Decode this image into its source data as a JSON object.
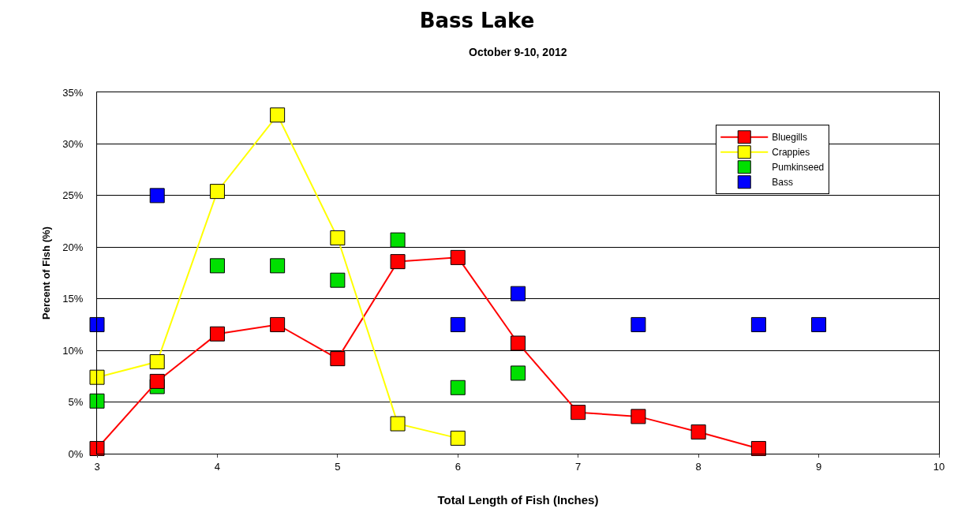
{
  "chart_data": {
    "type": "line",
    "title": "Bass Lake",
    "subtitle": "October 9-10, 2012",
    "xlabel": "Total Length of Fish (Inches)",
    "ylabel": "Percent of Fish (%)",
    "x": [
      3,
      3.5,
      4,
      4.5,
      5,
      5.5,
      6,
      6.5,
      7,
      7.5,
      8,
      8.5,
      9
    ],
    "series": [
      {
        "name": "Bluegills",
        "type": "line",
        "color": "#ff0000",
        "values": [
          0.5,
          7.0,
          11.6,
          12.5,
          9.2,
          18.6,
          19.0,
          10.7,
          4.0,
          3.6,
          2.1,
          0.5,
          null
        ]
      },
      {
        "name": "Crappies",
        "type": "line",
        "color": "#ffff00",
        "values": [
          7.4,
          8.9,
          25.4,
          32.8,
          20.9,
          2.9,
          1.5,
          null,
          null,
          null,
          null,
          null,
          null
        ]
      },
      {
        "name": "Pumkinseed",
        "type": "scatter",
        "color": "#00e000",
        "values": [
          5.1,
          6.5,
          18.2,
          18.2,
          16.8,
          20.7,
          6.4,
          7.8,
          null,
          null,
          null,
          null,
          null
        ]
      },
      {
        "name": "Bass",
        "type": "scatter",
        "color": "#0000ff",
        "values": [
          12.5,
          25.0,
          null,
          null,
          null,
          null,
          12.5,
          15.5,
          null,
          12.5,
          null,
          12.5,
          12.5
        ]
      }
    ],
    "xlim": [
      3,
      10
    ],
    "xticks": [
      3,
      4,
      5,
      6,
      7,
      8,
      9,
      10
    ],
    "ylim": [
      0,
      35
    ],
    "yticks": [
      {
        "value": 0,
        "label": "0%"
      },
      {
        "value": 5,
        "label": "5%"
      },
      {
        "value": 10,
        "label": "10%"
      },
      {
        "value": 15,
        "label": "15%"
      },
      {
        "value": 20,
        "label": "20%"
      },
      {
        "value": 25,
        "label": "25%"
      },
      {
        "value": 30,
        "label": "30%"
      },
      {
        "value": 35,
        "label": "35%"
      }
    ],
    "grid": "y",
    "legend": "top right",
    "marker": "square",
    "line_style": "solid"
  }
}
